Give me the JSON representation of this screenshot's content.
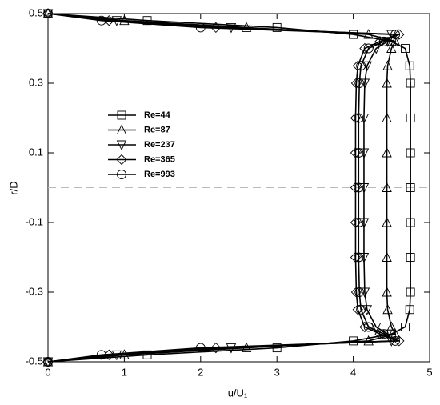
{
  "chart_data": {
    "type": "line",
    "x_label": "u/U₁",
    "y_label": "r/D",
    "xlim": [
      0,
      5
    ],
    "xticks": [
      0,
      1,
      2,
      3,
      4,
      5
    ],
    "ylim": [
      -0.5,
      0.5
    ],
    "yticks": [
      -0.5,
      -0.3,
      -0.1,
      0.1,
      0.3,
      0.5
    ],
    "hline": 0,
    "series": [
      {
        "name": "Re=44",
        "color": "#000000",
        "marker": "square",
        "x": [
          0,
          1.3,
          3.0,
          4.0,
          4.5,
          4.68,
          4.74,
          4.75,
          4.75,
          4.75,
          4.75,
          4.75,
          4.75,
          4.75,
          4.74,
          4.68,
          4.5,
          4.0,
          3.0,
          1.3,
          0
        ],
        "values": [
          0.5,
          0.48,
          0.46,
          0.44,
          0.42,
          0.4,
          0.35,
          0.3,
          0.2,
          0.1,
          0,
          -0.1,
          -0.2,
          -0.3,
          -0.35,
          -0.4,
          -0.42,
          -0.44,
          -0.46,
          -0.48,
          -0.5
        ]
      },
      {
        "name": "Re=87",
        "color": "#000000",
        "marker": "triangle-up",
        "x": [
          0,
          1.0,
          2.6,
          4.2,
          4.55,
          4.5,
          4.45,
          4.44,
          4.44,
          4.44,
          4.44,
          4.44,
          4.44,
          4.44,
          4.45,
          4.5,
          4.55,
          4.2,
          2.6,
          1.0,
          0
        ],
        "values": [
          0.5,
          0.48,
          0.46,
          0.44,
          0.42,
          0.4,
          0.35,
          0.3,
          0.2,
          0.1,
          0,
          -0.1,
          -0.2,
          -0.3,
          -0.35,
          -0.4,
          -0.42,
          -0.44,
          -0.46,
          -0.48,
          -0.5
        ]
      },
      {
        "name": "Re=237",
        "color": "#000000",
        "marker": "triangle-down",
        "x": [
          0,
          0.9,
          2.4,
          4.5,
          4.45,
          4.3,
          4.18,
          4.15,
          4.14,
          4.14,
          4.14,
          4.14,
          4.14,
          4.15,
          4.18,
          4.3,
          4.45,
          4.5,
          2.4,
          0.9,
          0
        ],
        "values": [
          0.5,
          0.48,
          0.46,
          0.44,
          0.42,
          0.4,
          0.35,
          0.3,
          0.2,
          0.1,
          0,
          -0.1,
          -0.2,
          -0.3,
          -0.35,
          -0.4,
          -0.42,
          -0.44,
          -0.46,
          -0.48,
          -0.5
        ]
      },
      {
        "name": "Re=365",
        "color": "#000000",
        "marker": "diamond",
        "x": [
          0,
          0.8,
          2.2,
          4.6,
          4.35,
          4.15,
          4.06,
          4.04,
          4.03,
          4.03,
          4.03,
          4.03,
          4.03,
          4.04,
          4.06,
          4.15,
          4.35,
          4.6,
          2.2,
          0.8,
          0
        ],
        "values": [
          0.5,
          0.48,
          0.46,
          0.44,
          0.42,
          0.4,
          0.35,
          0.3,
          0.2,
          0.1,
          0,
          -0.1,
          -0.2,
          -0.3,
          -0.35,
          -0.4,
          -0.42,
          -0.44,
          -0.46,
          -0.48,
          -0.5
        ]
      },
      {
        "name": "Re=993",
        "color": "#000000",
        "marker": "circle",
        "x": [
          0,
          0.7,
          2.0,
          4.55,
          4.4,
          4.2,
          4.1,
          4.08,
          4.07,
          4.07,
          4.07,
          4.07,
          4.07,
          4.08,
          4.1,
          4.2,
          4.4,
          4.55,
          2.0,
          0.7,
          0
        ],
        "values": [
          0.5,
          0.48,
          0.46,
          0.44,
          0.42,
          0.4,
          0.35,
          0.3,
          0.2,
          0.1,
          0,
          -0.1,
          -0.2,
          -0.3,
          -0.35,
          -0.4,
          -0.42,
          -0.44,
          -0.46,
          -0.48,
          -0.5
        ]
      }
    ]
  }
}
